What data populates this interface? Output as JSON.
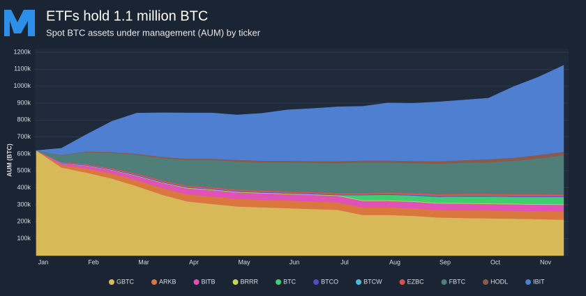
{
  "chart_data": {
    "type": "stacked_area",
    "title": "ETFs hold 1.1 million BTC",
    "subtitle": "Spot BTC assets under management (AUM) by ticker",
    "y_label": "AUM (BTC)",
    "categories": [
      "Jan",
      null,
      "Feb",
      null,
      "Mar",
      null,
      "Apr",
      null,
      "May",
      null,
      "Jun",
      null,
      "Jul",
      null,
      "Aug",
      null,
      "Sep",
      null,
      "Oct",
      null,
      "Nov",
      null
    ],
    "ylim": [
      0,
      1200000
    ],
    "yticks": [
      {
        "value": 100000,
        "label": "100k"
      },
      {
        "value": 200000,
        "label": "200k"
      },
      {
        "value": 300000,
        "label": "300k"
      },
      {
        "value": 400000,
        "label": "400k"
      },
      {
        "value": 500000,
        "label": "500k"
      },
      {
        "value": 600000,
        "label": "600k"
      },
      {
        "value": 700000,
        "label": "700k"
      },
      {
        "value": 800000,
        "label": "800k"
      },
      {
        "value": 900000,
        "label": "900k"
      },
      {
        "value": 1000000,
        "label": "1000k"
      },
      {
        "value": 1100000,
        "label": "1100k"
      },
      {
        "value": 1200000,
        "label": "1200k"
      }
    ],
    "grid": true,
    "series": [
      {
        "name": "GBTC",
        "color": "#d8b95a",
        "values": [
          620000,
          520000,
          490000,
          455000,
          410000,
          360000,
          320000,
          305000,
          290000,
          285000,
          280000,
          275000,
          270000,
          240000,
          240000,
          235000,
          225000,
          222000,
          220000,
          218000,
          215000,
          212000
        ]
      },
      {
        "name": "ARKB",
        "color": "#d9773f",
        "values": [
          0,
          15000,
          25000,
          30000,
          35000,
          40000,
          42000,
          45000,
          45000,
          45000,
          45000,
          45000,
          45000,
          45000,
          45000,
          45000,
          45000,
          47000,
          47000,
          47000,
          48000,
          48000
        ]
      },
      {
        "name": "BITB",
        "color": "#e052b8",
        "values": [
          0,
          10000,
          15000,
          20000,
          25000,
          30000,
          35000,
          37000,
          38000,
          38000,
          38000,
          38000,
          38000,
          38000,
          38000,
          38000,
          38000,
          38000,
          38000,
          38000,
          38000,
          40000
        ]
      },
      {
        "name": "BRRR",
        "color": "#c2d45a",
        "values": [
          0,
          1000,
          2000,
          2000,
          3000,
          3000,
          4000,
          4000,
          4000,
          4000,
          4000,
          4000,
          4000,
          4000,
          4000,
          4000,
          4000,
          4000,
          4000,
          4000,
          4000,
          4000
        ]
      },
      {
        "name": "BTC",
        "color": "#3fcf6e",
        "values": [
          0,
          0,
          0,
          0,
          0,
          0,
          0,
          0,
          0,
          0,
          0,
          0,
          0,
          30000,
          32000,
          33000,
          35000,
          38000,
          40000,
          40000,
          42000,
          42000
        ]
      },
      {
        "name": "BTCO",
        "color": "#4b4fc9",
        "values": [
          0,
          2000,
          3000,
          3000,
          4000,
          4000,
          4000,
          4000,
          4000,
          4000,
          4000,
          4000,
          4000,
          4000,
          4000,
          5000,
          5000,
          5000,
          5000,
          5000,
          5000,
          5000
        ]
      },
      {
        "name": "BTCW",
        "color": "#4fb8d9",
        "values": [
          0,
          500,
          1000,
          1000,
          1000,
          1000,
          1000,
          1000,
          1000,
          1000,
          1000,
          1000,
          1000,
          1000,
          1000,
          2000,
          2000,
          2000,
          2000,
          2000,
          2000,
          2000
        ]
      },
      {
        "name": "EZBC",
        "color": "#d9504f",
        "values": [
          0,
          3000,
          5000,
          6000,
          7000,
          8000,
          8000,
          8000,
          8000,
          8000,
          8000,
          8000,
          9000,
          9000,
          9000,
          9000,
          9000,
          10000,
          10000,
          10000,
          10000,
          10000
        ]
      },
      {
        "name": "FBTC",
        "color": "#4f7f78",
        "values": [
          0,
          40000,
          70000,
          90000,
          110000,
          130000,
          150000,
          160000,
          165000,
          165000,
          170000,
          172000,
          175000,
          178000,
          175000,
          175000,
          180000,
          182000,
          185000,
          195000,
          210000,
          230000
        ]
      },
      {
        "name": "HODL",
        "color": "#8b5a4a",
        "values": [
          0,
          2000,
          4000,
          5000,
          6000,
          7000,
          8000,
          8000,
          10000,
          10000,
          10000,
          11000,
          12000,
          12000,
          13000,
          13000,
          14000,
          15000,
          18000,
          18000,
          20000,
          20000
        ]
      },
      {
        "name": "IBIT",
        "color": "#4f7fd0",
        "values": [
          0,
          40000,
          100000,
          180000,
          240000,
          260000,
          270000,
          270000,
          265000,
          280000,
          300000,
          310000,
          320000,
          320000,
          340000,
          340000,
          350000,
          355000,
          360000,
          420000,
          460000,
          510000
        ]
      }
    ]
  }
}
